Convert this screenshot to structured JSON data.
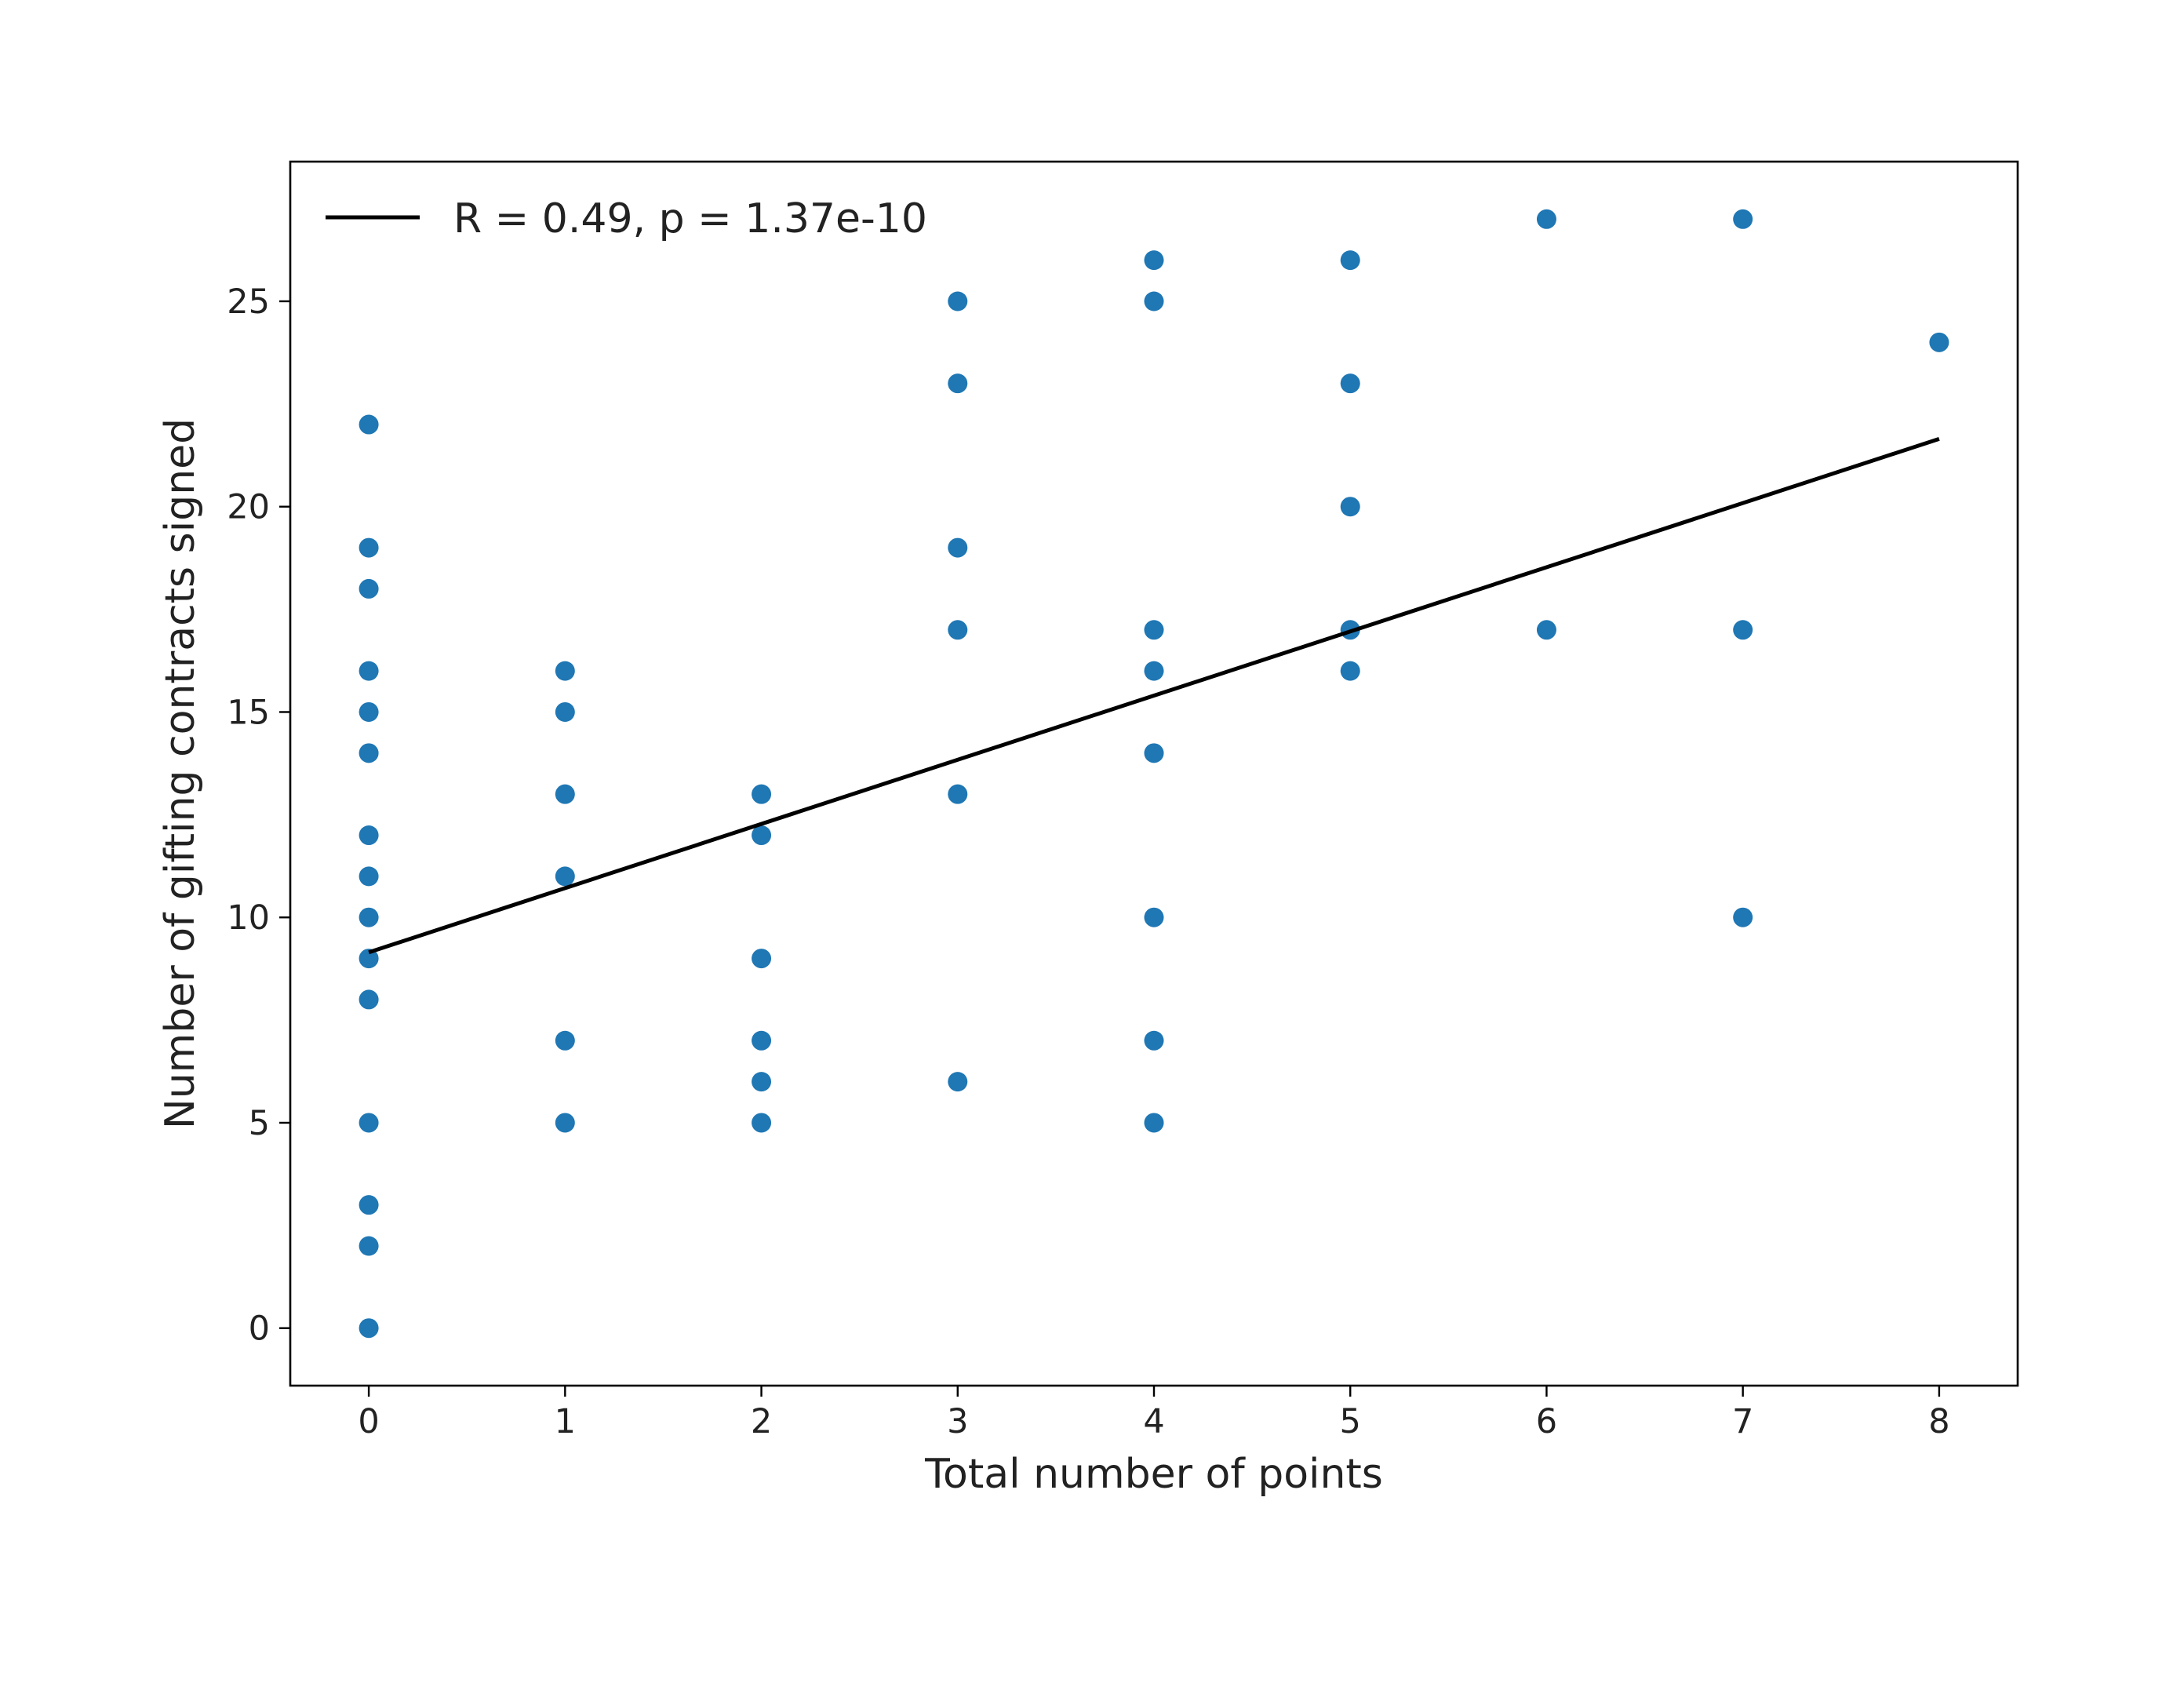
{
  "chart_data": {
    "type": "scatter",
    "xlabel": "Total number of points",
    "ylabel": "Number of gifting contracts signed",
    "xlim": [
      -0.4,
      8.4
    ],
    "ylim": [
      -1.4,
      28.4
    ],
    "xticks": [
      0,
      1,
      2,
      3,
      4,
      5,
      6,
      7,
      8
    ],
    "yticks": [
      0,
      5,
      10,
      15,
      20,
      25
    ],
    "grid": false,
    "legend": {
      "placement": "top-left",
      "entries": [
        "R = 0.49, p = 1.37e-10"
      ]
    },
    "marker_color": "#1f77b4",
    "line_color": "#000000",
    "points": [
      {
        "x": 0,
        "y": 22
      },
      {
        "x": 0,
        "y": 19
      },
      {
        "x": 0,
        "y": 18
      },
      {
        "x": 0,
        "y": 16
      },
      {
        "x": 0,
        "y": 15
      },
      {
        "x": 0,
        "y": 14
      },
      {
        "x": 0,
        "y": 12
      },
      {
        "x": 0,
        "y": 11
      },
      {
        "x": 0,
        "y": 10
      },
      {
        "x": 0,
        "y": 9
      },
      {
        "x": 0,
        "y": 8
      },
      {
        "x": 0,
        "y": 5
      },
      {
        "x": 0,
        "y": 3
      },
      {
        "x": 0,
        "y": 2
      },
      {
        "x": 0,
        "y": 0
      },
      {
        "x": 1,
        "y": 16
      },
      {
        "x": 1,
        "y": 15
      },
      {
        "x": 1,
        "y": 13
      },
      {
        "x": 1,
        "y": 11
      },
      {
        "x": 1,
        "y": 7
      },
      {
        "x": 1,
        "y": 5
      },
      {
        "x": 2,
        "y": 13
      },
      {
        "x": 2,
        "y": 12
      },
      {
        "x": 2,
        "y": 9
      },
      {
        "x": 2,
        "y": 7
      },
      {
        "x": 2,
        "y": 6
      },
      {
        "x": 2,
        "y": 5
      },
      {
        "x": 3,
        "y": 25
      },
      {
        "x": 3,
        "y": 23
      },
      {
        "x": 3,
        "y": 19
      },
      {
        "x": 3,
        "y": 17
      },
      {
        "x": 3,
        "y": 13
      },
      {
        "x": 3,
        "y": 6
      },
      {
        "x": 4,
        "y": 26
      },
      {
        "x": 4,
        "y": 25
      },
      {
        "x": 4,
        "y": 17
      },
      {
        "x": 4,
        "y": 16
      },
      {
        "x": 4,
        "y": 14
      },
      {
        "x": 4,
        "y": 10
      },
      {
        "x": 4,
        "y": 7
      },
      {
        "x": 4,
        "y": 5
      },
      {
        "x": 5,
        "y": 26
      },
      {
        "x": 5,
        "y": 23
      },
      {
        "x": 5,
        "y": 20
      },
      {
        "x": 5,
        "y": 17
      },
      {
        "x": 5,
        "y": 16
      },
      {
        "x": 6,
        "y": 27
      },
      {
        "x": 6,
        "y": 17
      },
      {
        "x": 7,
        "y": 27
      },
      {
        "x": 7,
        "y": 17
      },
      {
        "x": 7,
        "y": 10
      },
      {
        "x": 8,
        "y": 24
      }
    ],
    "fit_line": {
      "x": [
        0,
        8
      ],
      "y": [
        9.15,
        21.65
      ]
    }
  }
}
